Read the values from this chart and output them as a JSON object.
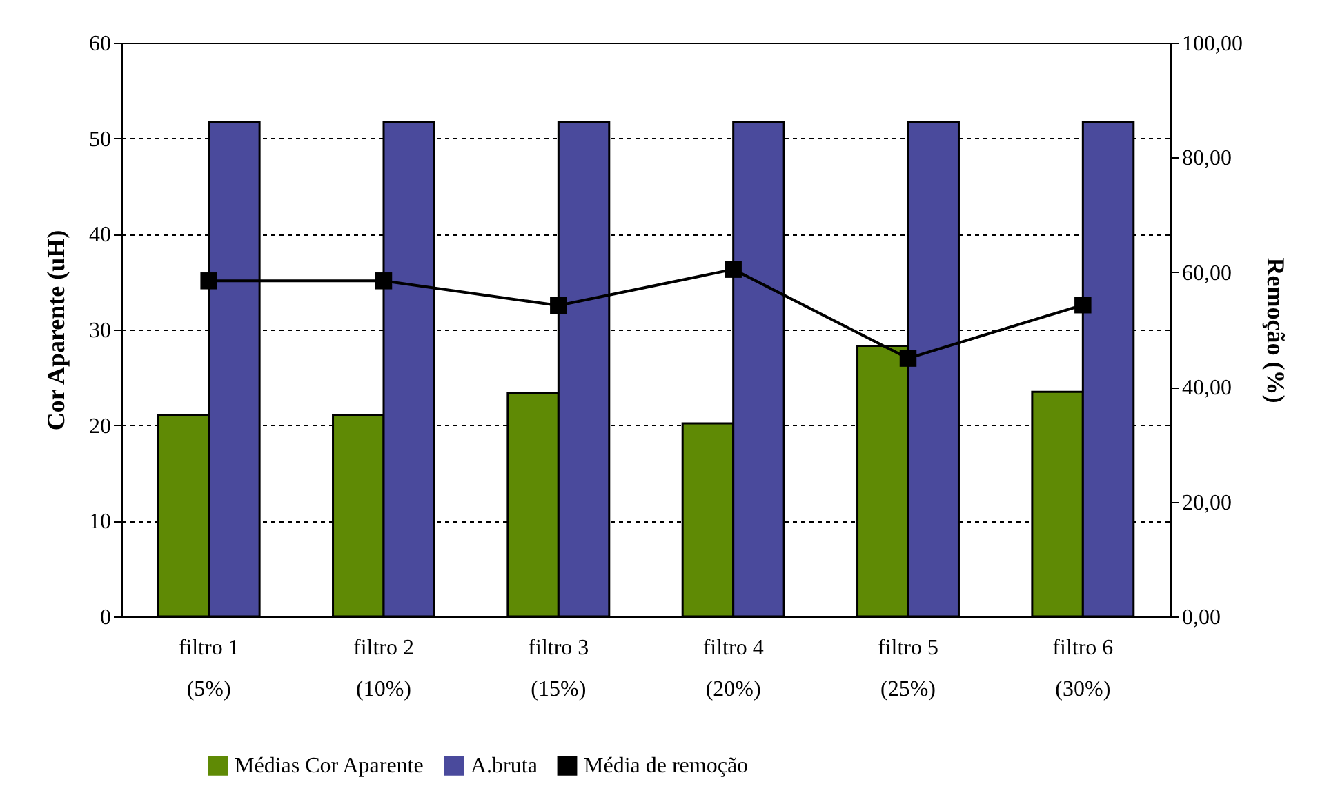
{
  "chart_data": {
    "type": "bar",
    "ylabel": "Cor Aparente (uH)",
    "y2label": "Remoção (%)",
    "categories": [
      "filtro 1\n(5%)",
      "filtro 2\n(10%)",
      "filtro 3\n(15%)",
      "filtro 4\n(20%)",
      "filtro 5\n(25%)",
      "filtro 6\n(30%)"
    ],
    "series": [
      {
        "name": "Médias Cor Aparente",
        "color": "#5f8a05",
        "values": [
          21.1,
          21.1,
          23.4,
          20.2,
          28.3,
          23.5
        ]
      },
      {
        "name": "A.bruta",
        "color": "#4a4a9c",
        "values": [
          51.7,
          51.7,
          51.7,
          51.7,
          51.7,
          51.7
        ]
      },
      {
        "name": "Média de remoção",
        "type": "line",
        "axis": "y2",
        "color": "#000000",
        "marker": "square",
        "values": [
          58.5,
          58.5,
          54.2,
          60.5,
          45.0,
          54.3
        ]
      }
    ],
    "ylim": [
      0,
      60
    ],
    "yticks": [
      0,
      10,
      20,
      30,
      40,
      50,
      60
    ],
    "y2lim": [
      0,
      100
    ],
    "y2ticks": [
      {
        "value": 0,
        "label": "0,00"
      },
      {
        "value": 20,
        "label": "20,00"
      },
      {
        "value": 40,
        "label": "40,00"
      },
      {
        "value": 60,
        "label": "60,00"
      },
      {
        "value": 80,
        "label": "80,00"
      },
      {
        "value": 100,
        "label": "100,00"
      }
    ],
    "grid": "y",
    "legend": "bottom"
  }
}
